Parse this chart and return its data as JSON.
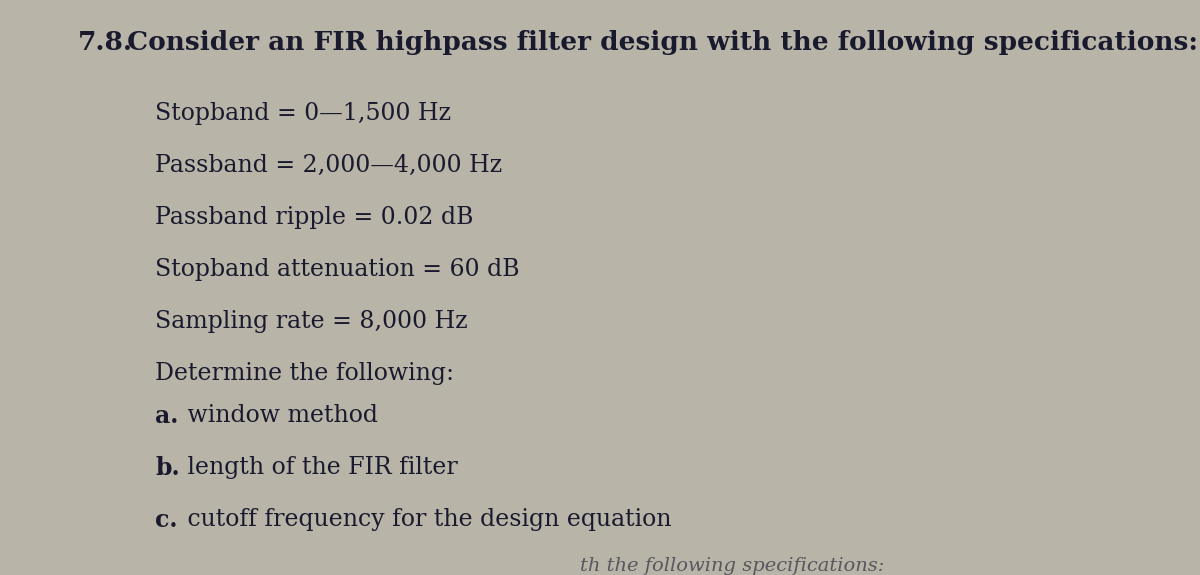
{
  "background_color": "#b8b4a8",
  "title_num": "7.8.",
  "title_rest": " Consider an FIR highpass filter design with the following specifications:",
  "lines": [
    "Stopband = 0—1,500 Hz",
    "Passband = 2,000—4,000 Hz",
    "Passband ripple = 0.02 dB",
    "Stopband attenuation = 60 dB",
    "Sampling rate = 8,000 Hz",
    "Determine the following:"
  ],
  "sub_lines": [
    {
      "label": "a.",
      "text": " window method"
    },
    {
      "label": "b.",
      "text": " length of the FIR filter"
    },
    {
      "label": "c.",
      "text": " cutoff frequency for the design equation"
    }
  ],
  "bottom_text": "th the following specifications:",
  "text_color": "#1a1a2e",
  "title_fontsize": 19,
  "body_fontsize": 17,
  "sub_fontsize": 17
}
